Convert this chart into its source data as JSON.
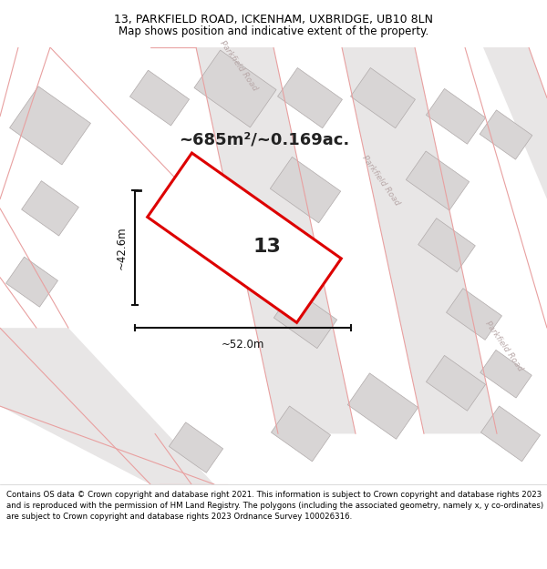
{
  "title_line1": "13, PARKFIELD ROAD, ICKENHAM, UXBRIDGE, UB10 8LN",
  "title_line2": "Map shows position and indicative extent of the property.",
  "area_text": "~685m²/~0.169ac.",
  "property_number": "13",
  "dim_width": "~52.0m",
  "dim_height": "~42.6m",
  "map_bg": "#f7f5f5",
  "road_fill": "#e8e6e6",
  "building_fill": "#d8d5d5",
  "building_edge": "#b0aaaa",
  "road_line_color": "#e8a0a0",
  "road_label_color": "#b8a8a8",
  "property_color": "#dd0000",
  "dim_color": "#111111",
  "text_color": "#222222",
  "footer_text": "Contains OS data © Crown copyright and database right 2021. This information is subject to Crown copyright and database rights 2023 and is reproduced with the permission of HM Land Registry. The polygons (including the associated geometry, namely x, y co-ordinates) are subject to Crown copyright and database rights 2023 Ordnance Survey 100026316.",
  "title_fontsize": 9.0,
  "subtitle_fontsize": 8.5,
  "area_fontsize": 13,
  "propnum_fontsize": 16,
  "dim_fontsize": 8.5,
  "road_label_fontsize": 6.5,
  "footer_fontsize": 6.2
}
